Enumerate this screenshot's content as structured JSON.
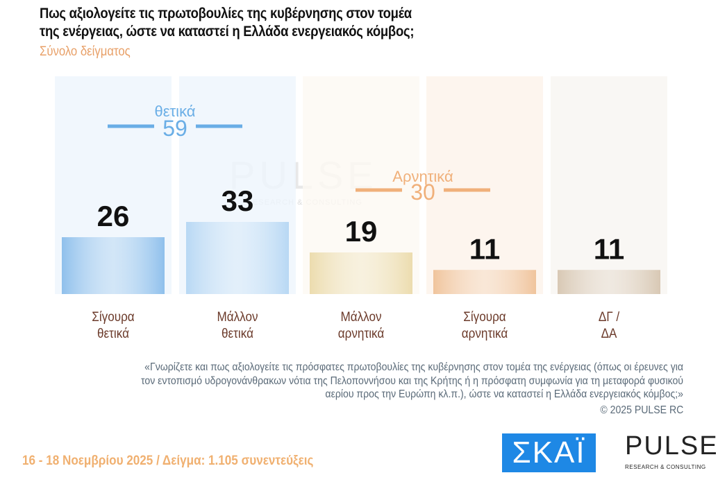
{
  "title_line1": "Πως αξιολογείτε τις πρωτοβουλίες της κυβέρνησης στον τομέα",
  "title_line2": "της ενέργειας, ώστε να καταστεί η Ελλάδα ενεργειακός κόμβος;",
  "subtitle": "Σύνολο δείγματος",
  "chart_data": {
    "type": "bar",
    "categories": [
      [
        "Σίγουρα",
        "θετικά"
      ],
      [
        "Μάλλον",
        "θετικά"
      ],
      [
        "Μάλλον",
        "αρνητικά"
      ],
      [
        "Σίγουρα",
        "αρνητικά"
      ],
      [
        "ΔΓ /",
        "ΔΑ"
      ]
    ],
    "values": [
      26,
      33,
      19,
      11,
      11
    ],
    "colors": [
      "#8fc0ec",
      "#b8d8f4",
      "#ecdcae",
      "#f0c49c",
      "#d8c8b4"
    ],
    "ylim": [
      0,
      100
    ],
    "groups": [
      {
        "label": "θετικά",
        "value": 59,
        "color": "#6aaee6"
      },
      {
        "label": "Αρνητικά",
        "value": 30,
        "color": "#f0b07a"
      }
    ]
  },
  "note": "«Γνωρίζετε και πως αξιολογείτε τις πρόσφατες πρωτοβουλίες της κυβέρνησης στον τομέα της ενέργειας (όπως οι έρευνες για τον εντοπισμό υδρογονάνθρακων νότια της Πελοποννήσου και της Κρήτης ή η πρόσφατη συμφωνία για τη μεταφορά φυσικού αερίου προς την Ευρώπη κλ.π.), ώστε να καταστεί η Ελλάδα ενεργειακός κόμβος;»",
  "copyright": "©  2025  PULSE RC",
  "footer": "16 - 18 Νοεμβρίου 2025  /  Δείγμα:  1.105 συνεντεύξεις",
  "logos": {
    "skai": "ΣΚΑΪ",
    "pulse": "PULSE",
    "pulse_tag": "RESEARCH & CONSULTING"
  }
}
